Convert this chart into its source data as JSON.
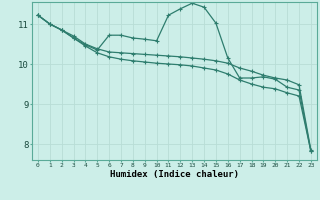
{
  "xlabel": "Humidex (Indice chaleur)",
  "background_color": "#cceee8",
  "grid_color": "#b8ddd6",
  "line_color": "#2e7d6e",
  "xlim": [
    -0.5,
    23.5
  ],
  "ylim": [
    7.6,
    11.55
  ],
  "yticks": [
    8,
    9,
    10,
    11
  ],
  "xticks": [
    0,
    1,
    2,
    3,
    4,
    5,
    6,
    7,
    8,
    9,
    10,
    11,
    12,
    13,
    14,
    15,
    16,
    17,
    18,
    19,
    20,
    21,
    22,
    23
  ],
  "line1_x": [
    0,
    1,
    2,
    3,
    4,
    5,
    6,
    7,
    8,
    9,
    10,
    11,
    12,
    13,
    14,
    15,
    16,
    17,
    18,
    19,
    20,
    21,
    22,
    23
  ],
  "line1_y": [
    11.22,
    11.0,
    10.85,
    10.65,
    10.45,
    10.28,
    10.18,
    10.12,
    10.08,
    10.05,
    10.02,
    10.0,
    9.98,
    9.95,
    9.9,
    9.85,
    9.75,
    9.6,
    9.5,
    9.42,
    9.38,
    9.28,
    9.2,
    7.82
  ],
  "line2_x": [
    0,
    1,
    2,
    3,
    4,
    5,
    6,
    7,
    8,
    9,
    10,
    11,
    12,
    13,
    14,
    15,
    16,
    17,
    18,
    19,
    20,
    21,
    22,
    23
  ],
  "line2_y": [
    11.22,
    11.0,
    10.85,
    10.7,
    10.5,
    10.38,
    10.3,
    10.28,
    10.26,
    10.24,
    10.22,
    10.2,
    10.18,
    10.15,
    10.12,
    10.08,
    10.02,
    9.9,
    9.82,
    9.72,
    9.65,
    9.6,
    9.48,
    7.85
  ],
  "line3_x": [
    0,
    1,
    2,
    3,
    4,
    5,
    6,
    7,
    8,
    9,
    10,
    11,
    12,
    13,
    14,
    15,
    16,
    17,
    18,
    19,
    20,
    21,
    22,
    23
  ],
  "line3_y": [
    11.22,
    11.0,
    10.85,
    10.65,
    10.48,
    10.35,
    10.72,
    10.72,
    10.65,
    10.62,
    10.58,
    11.22,
    11.38,
    11.52,
    11.42,
    11.02,
    10.15,
    9.65,
    9.65,
    9.68,
    9.62,
    9.42,
    9.35,
    7.82
  ]
}
